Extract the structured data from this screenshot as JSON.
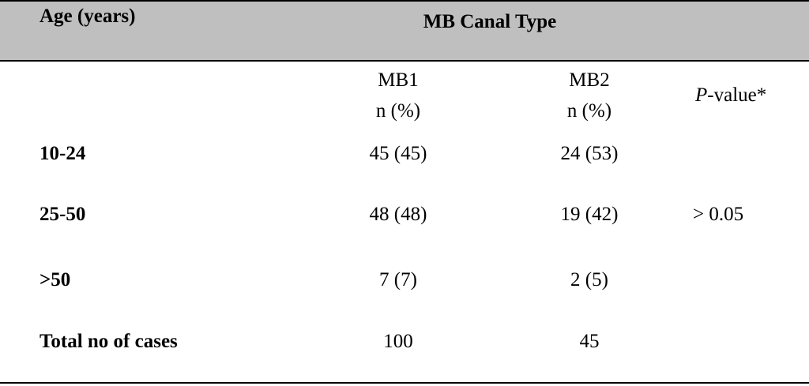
{
  "table": {
    "header": {
      "age_label": "Age (years)",
      "group_label": "MB Canal Type"
    },
    "subheader": {
      "mb1_name": "MB1",
      "mb1_unit": "n (%)",
      "mb2_name": "MB2",
      "mb2_unit": "n (%)",
      "pvalue_italic": "P",
      "pvalue_rest": "-value*"
    },
    "rows": [
      {
        "age": "10-24",
        "mb1": "45 (45)",
        "mb2": "24 (53)"
      },
      {
        "age": "25-50",
        "mb1": "48 (48)",
        "mb2": "19 (42)"
      },
      {
        "age": ">50",
        "mb1": "7 (7)",
        "mb2": "2 (5)"
      },
      {
        "age": "Total no of cases",
        "mb1": "100",
        "mb2": "45"
      }
    ],
    "pvalue": "> 0.05"
  }
}
